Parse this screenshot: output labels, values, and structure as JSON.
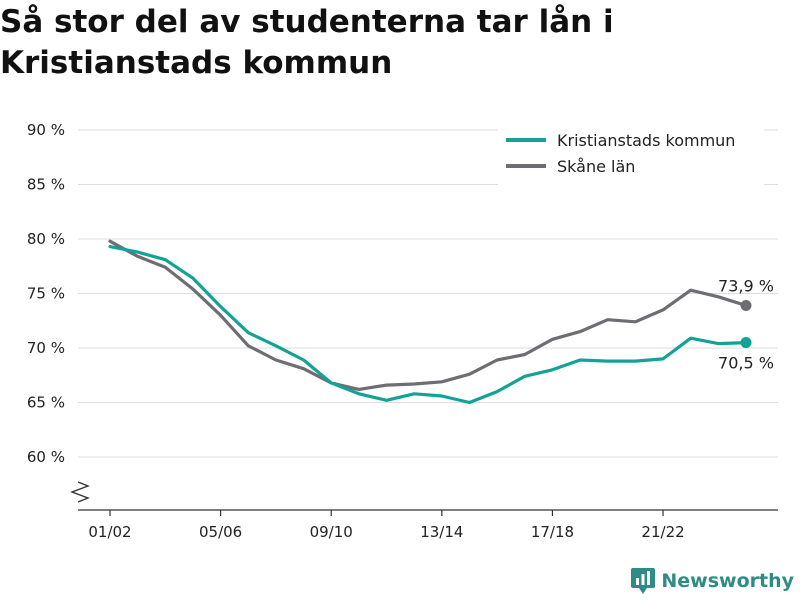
{
  "title": "Så stor del av studenterna tar lån i Kristianstads kommun",
  "brand": "Newsworthy",
  "colors": {
    "series1": "#13a396",
    "series2": "#6e6d74",
    "grid": "#dddddd",
    "axis": "#333333",
    "brand": "#2e8c85"
  },
  "chart_data": {
    "type": "line",
    "title": "Så stor del av studenterna tar lån i Kristianstads kommun",
    "xlabel": "",
    "ylabel": "",
    "x": [
      "01/02",
      "02/03",
      "03/04",
      "04/05",
      "05/06",
      "06/07",
      "07/08",
      "08/09",
      "09/10",
      "10/11",
      "11/12",
      "12/13",
      "13/14",
      "14/15",
      "15/16",
      "16/17",
      "17/18",
      "18/19",
      "19/20",
      "20/21",
      "21/22",
      "22/23",
      "23/24",
      "24/25"
    ],
    "xticks": [
      "01/02",
      "05/06",
      "09/10",
      "13/14",
      "17/18",
      "21/22"
    ],
    "yticks": [
      60,
      65,
      70,
      75,
      80,
      85,
      90
    ],
    "ytick_labels": [
      "60 %",
      "65 %",
      "70 %",
      "75 %",
      "80 %",
      "85 %",
      "90 %"
    ],
    "ylim": [
      55,
      91
    ],
    "y_axis_break": true,
    "grid": true,
    "legend_position": "top-right",
    "series": [
      {
        "name": "Kristianstads kommun",
        "values": [
          79.3,
          78.8,
          78.1,
          76.4,
          73.8,
          71.4,
          70.2,
          68.9,
          66.8,
          65.8,
          65.2,
          65.8,
          65.6,
          65.0,
          66.0,
          67.4,
          68.0,
          68.9,
          68.8,
          68.8,
          69.0,
          70.9,
          70.4,
          70.5
        ],
        "end_label": "70,5 %"
      },
      {
        "name": "Skåne län",
        "values": [
          79.8,
          78.4,
          77.4,
          75.4,
          73.0,
          70.2,
          68.9,
          68.1,
          66.8,
          66.2,
          66.6,
          66.7,
          66.9,
          67.6,
          68.9,
          69.4,
          70.8,
          71.5,
          72.6,
          72.4,
          73.5,
          75.3,
          74.7,
          73.9
        ],
        "end_label": "73,9 %"
      }
    ]
  }
}
